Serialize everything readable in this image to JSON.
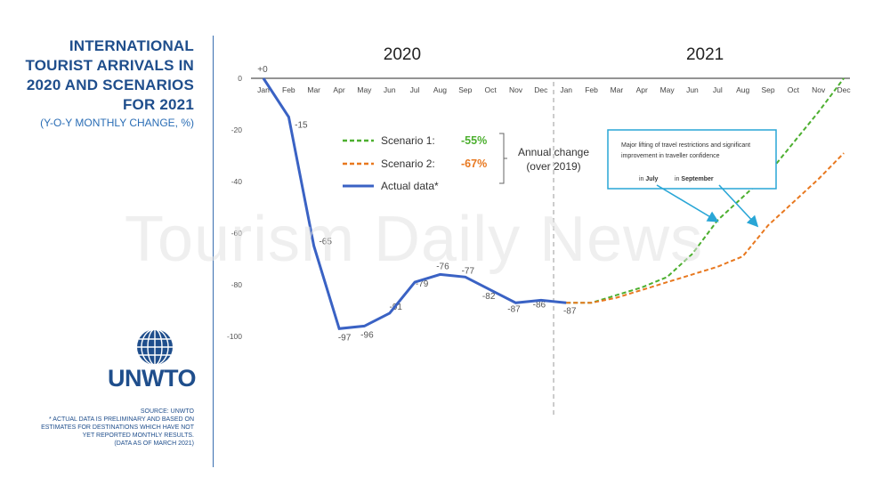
{
  "title_lines": [
    "INTERNATIONAL",
    "TOURIST ARRIVALS IN",
    "2020 AND SCENARIOS",
    "FOR 2021"
  ],
  "subtitle": "(Y-O-Y MONTHLY CHANGE, %)",
  "org": "UNWTO",
  "footnote_lines": [
    "SOURCE: UNWTO",
    "* ACTUAL DATA IS PRELIMINARY AND BASED ON",
    "ESTIMATES FOR DESTINATIONS WHICH HAVE NOT",
    "YET REPORTED MONTHLY RESULTS.",
    "(DATA AS OF MARCH 2021)"
  ],
  "watermark": "Tourism Daily News",
  "colors": {
    "actual": "#3a62c4",
    "scenario1": "#4caf2f",
    "scenario2": "#e8781f",
    "brand": "#1f4e8c",
    "annotation": "#29a6d6"
  },
  "chart_data": {
    "type": "line",
    "year_labels": [
      "2020",
      "2021"
    ],
    "categories": [
      "Jan",
      "Feb",
      "Mar",
      "Apr",
      "May",
      "Jun",
      "Jul",
      "Aug",
      "Sep",
      "Oct",
      "Nov",
      "Dec",
      "Jan",
      "Feb",
      "Mar",
      "Apr",
      "May",
      "Jun",
      "Jul",
      "Aug",
      "Sep",
      "Oct",
      "Nov",
      "Dec"
    ],
    "ylim": [
      -100,
      0
    ],
    "y_ticks": [
      0,
      -20,
      -40,
      -60,
      -80,
      -100
    ],
    "actual": {
      "name": "Actual data*",
      "values": [
        0,
        -15,
        -65,
        -97,
        -96,
        -91,
        -79,
        -76,
        -77,
        -82,
        -87,
        -86,
        -87
      ],
      "point_labels": [
        "+0",
        "-15",
        "-65",
        "-97",
        "-96",
        "-91",
        "-79",
        "-76",
        "-77",
        "-82",
        "-87",
        "-86",
        "-87"
      ]
    },
    "scenario1": {
      "name": "Scenario 1:",
      "annual_change": "-55%",
      "values": [
        -87,
        -87,
        -84,
        -81,
        -77,
        -68,
        -55,
        -46,
        -37,
        -25,
        -13,
        0
      ]
    },
    "scenario2": {
      "name": "Scenario 2:",
      "annual_change": "-67%",
      "values": [
        -87,
        -87,
        -85,
        -82,
        -79,
        -76,
        -73,
        -69,
        -57,
        -48,
        -39,
        -29
      ]
    },
    "annual_change_label": [
      "Annual change",
      "(over 2019)"
    ],
    "annotation": {
      "text": [
        "Major lifting of travel restrictions and significant",
        "improvement in traveller confidence"
      ],
      "july_prefix": "in ",
      "july": "July",
      "september_prefix": "in ",
      "september": "September"
    }
  }
}
